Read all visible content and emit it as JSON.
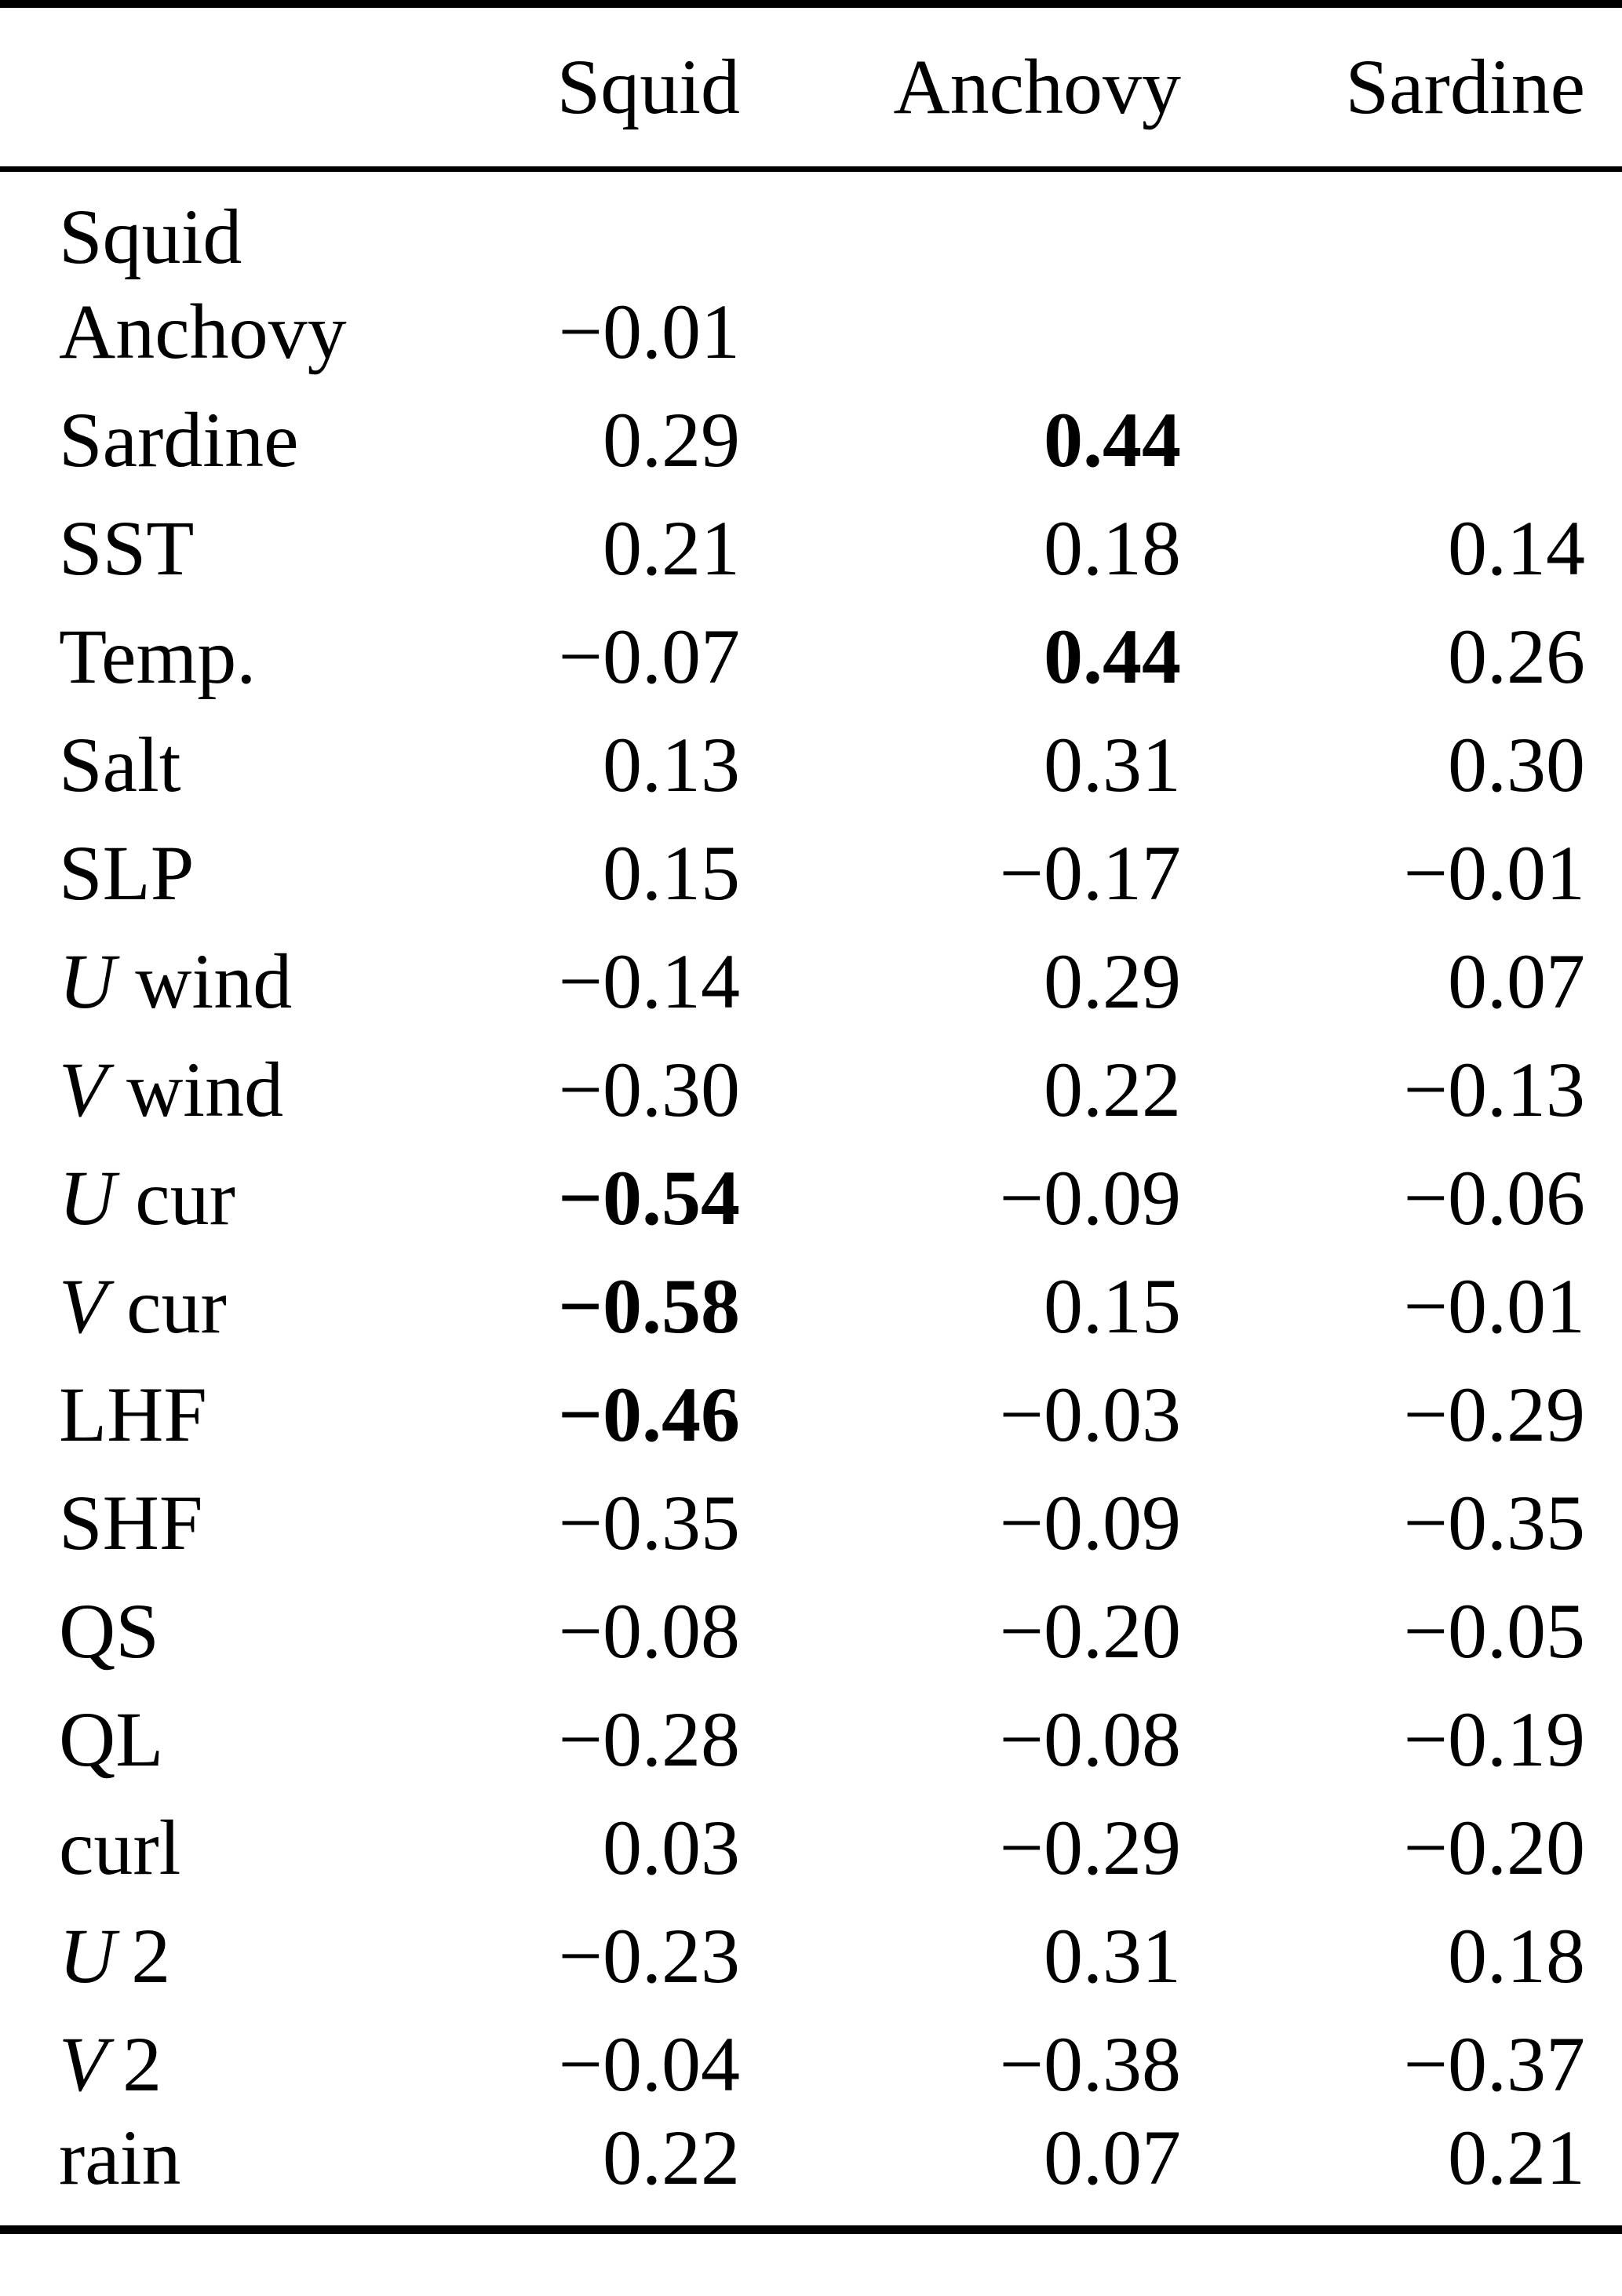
{
  "colors": {
    "background": "#ffffff",
    "text": "#000000",
    "rule": "#000000"
  },
  "table": {
    "header": {
      "col_labels": [
        "Squid",
        "Anchovy",
        "Sardine"
      ]
    },
    "rows": [
      {
        "label_parts": [
          {
            "text": "Squid",
            "italic": false
          }
        ],
        "cells": [
          {
            "value": "",
            "bold": false
          },
          {
            "value": "",
            "bold": false
          },
          {
            "value": "",
            "bold": false
          }
        ]
      },
      {
        "label_parts": [
          {
            "text": "Anchovy",
            "italic": false
          }
        ],
        "cells": [
          {
            "value": "−0.01",
            "bold": false
          },
          {
            "value": "",
            "bold": false
          },
          {
            "value": "",
            "bold": false
          }
        ]
      },
      {
        "label_parts": [
          {
            "text": "Sardine",
            "italic": false
          }
        ],
        "cells": [
          {
            "value": "0.29",
            "bold": false
          },
          {
            "value": "0.44",
            "bold": true
          },
          {
            "value": "",
            "bold": false
          }
        ]
      },
      {
        "label_parts": [
          {
            "text": "SST",
            "italic": false
          }
        ],
        "cells": [
          {
            "value": "0.21",
            "bold": false
          },
          {
            "value": "0.18",
            "bold": false
          },
          {
            "value": "0.14",
            "bold": false
          }
        ]
      },
      {
        "label_parts": [
          {
            "text": "Temp.",
            "italic": false
          }
        ],
        "cells": [
          {
            "value": "−0.07",
            "bold": false
          },
          {
            "value": "0.44",
            "bold": true
          },
          {
            "value": "0.26",
            "bold": false
          }
        ]
      },
      {
        "label_parts": [
          {
            "text": "Salt",
            "italic": false
          }
        ],
        "cells": [
          {
            "value": "0.13",
            "bold": false
          },
          {
            "value": "0.31",
            "bold": false
          },
          {
            "value": "0.30",
            "bold": false
          }
        ]
      },
      {
        "label_parts": [
          {
            "text": "SLP",
            "italic": false
          }
        ],
        "cells": [
          {
            "value": "0.15",
            "bold": false
          },
          {
            "value": "−0.17",
            "bold": false
          },
          {
            "value": "−0.01",
            "bold": false
          }
        ]
      },
      {
        "label_parts": [
          {
            "text": "U",
            "italic": true
          },
          {
            "text": " wind",
            "italic": false
          }
        ],
        "cells": [
          {
            "value": "−0.14",
            "bold": false
          },
          {
            "value": "0.29",
            "bold": false
          },
          {
            "value": "0.07",
            "bold": false
          }
        ]
      },
      {
        "label_parts": [
          {
            "text": "V",
            "italic": true
          },
          {
            "text": " wind",
            "italic": false
          }
        ],
        "cells": [
          {
            "value": "−0.30",
            "bold": false
          },
          {
            "value": "0.22",
            "bold": false
          },
          {
            "value": "−0.13",
            "bold": false
          }
        ]
      },
      {
        "label_parts": [
          {
            "text": "U",
            "italic": true
          },
          {
            "text": " cur",
            "italic": false
          }
        ],
        "cells": [
          {
            "value": "−0.54",
            "bold": true
          },
          {
            "value": "−0.09",
            "bold": false
          },
          {
            "value": "−0.06",
            "bold": false
          }
        ]
      },
      {
        "label_parts": [
          {
            "text": "V",
            "italic": true
          },
          {
            "text": " cur",
            "italic": false
          }
        ],
        "cells": [
          {
            "value": "−0.58",
            "bold": true
          },
          {
            "value": "0.15",
            "bold": false
          },
          {
            "value": "−0.01",
            "bold": false
          }
        ]
      },
      {
        "label_parts": [
          {
            "text": "LHF",
            "italic": false
          }
        ],
        "cells": [
          {
            "value": "−0.46",
            "bold": true
          },
          {
            "value": "−0.03",
            "bold": false
          },
          {
            "value": "−0.29",
            "bold": false
          }
        ]
      },
      {
        "label_parts": [
          {
            "text": "SHF",
            "italic": false
          }
        ],
        "cells": [
          {
            "value": "−0.35",
            "bold": false
          },
          {
            "value": "−0.09",
            "bold": false
          },
          {
            "value": "−0.35",
            "bold": false
          }
        ]
      },
      {
        "label_parts": [
          {
            "text": "QS",
            "italic": false
          }
        ],
        "cells": [
          {
            "value": "−0.08",
            "bold": false
          },
          {
            "value": "−0.20",
            "bold": false
          },
          {
            "value": "−0.05",
            "bold": false
          }
        ]
      },
      {
        "label_parts": [
          {
            "text": "QL",
            "italic": false
          }
        ],
        "cells": [
          {
            "value": "−0.28",
            "bold": false
          },
          {
            "value": "−0.08",
            "bold": false
          },
          {
            "value": "−0.19",
            "bold": false
          }
        ]
      },
      {
        "label_parts": [
          {
            "text": "curl",
            "italic": false
          }
        ],
        "cells": [
          {
            "value": "0.03",
            "bold": false
          },
          {
            "value": "−0.29",
            "bold": false
          },
          {
            "value": "−0.20",
            "bold": false
          }
        ]
      },
      {
        "label_parts": [
          {
            "text": "U",
            "italic": true
          },
          {
            "text": " 2",
            "italic": false
          }
        ],
        "cells": [
          {
            "value": "−0.23",
            "bold": false
          },
          {
            "value": "0.31",
            "bold": false
          },
          {
            "value": "0.18",
            "bold": false
          }
        ]
      },
      {
        "label_parts": [
          {
            "text": "V",
            "italic": true
          },
          {
            "text": " 2",
            "italic": false
          }
        ],
        "cells": [
          {
            "value": "−0.04",
            "bold": false
          },
          {
            "value": "−0.38",
            "bold": false
          },
          {
            "value": "−0.37",
            "bold": false
          }
        ]
      },
      {
        "label_parts": [
          {
            "text": "rain",
            "italic": false
          }
        ],
        "cells": [
          {
            "value": "0.22",
            "bold": false
          },
          {
            "value": "0.07",
            "bold": false
          },
          {
            "value": "0.21",
            "bold": false
          }
        ]
      }
    ]
  },
  "chart_data": {
    "type": "table",
    "title": "Correlation table",
    "columns": [
      "Squid",
      "Anchovy",
      "Sardine"
    ],
    "row_labels": [
      "Squid",
      "Anchovy",
      "Sardine",
      "SST",
      "Temp.",
      "Salt",
      "SLP",
      "U wind",
      "V wind",
      "U cur",
      "V cur",
      "LHF",
      "SHF",
      "QS",
      "QL",
      "curl",
      "U2",
      "V2",
      "rain"
    ],
    "values": [
      [
        null,
        null,
        null
      ],
      [
        -0.01,
        null,
        null
      ],
      [
        0.29,
        0.44,
        null
      ],
      [
        0.21,
        0.18,
        0.14
      ],
      [
        -0.07,
        0.44,
        0.26
      ],
      [
        0.13,
        0.31,
        0.3
      ],
      [
        0.15,
        -0.17,
        -0.01
      ],
      [
        -0.14,
        0.29,
        0.07
      ],
      [
        -0.3,
        0.22,
        -0.13
      ],
      [
        -0.54,
        -0.09,
        -0.06
      ],
      [
        -0.58,
        0.15,
        -0.01
      ],
      [
        -0.46,
        -0.03,
        -0.29
      ],
      [
        -0.35,
        -0.09,
        -0.35
      ],
      [
        -0.08,
        -0.2,
        -0.05
      ],
      [
        -0.28,
        -0.08,
        -0.19
      ],
      [
        0.03,
        -0.29,
        -0.2
      ],
      [
        -0.23,
        0.31,
        0.18
      ],
      [
        -0.04,
        -0.38,
        -0.37
      ],
      [
        0.22,
        0.07,
        0.21
      ]
    ],
    "bold_cells": [
      [
        2,
        1
      ],
      [
        4,
        1
      ],
      [
        9,
        0
      ],
      [
        10,
        0
      ],
      [
        11,
        0
      ]
    ]
  }
}
